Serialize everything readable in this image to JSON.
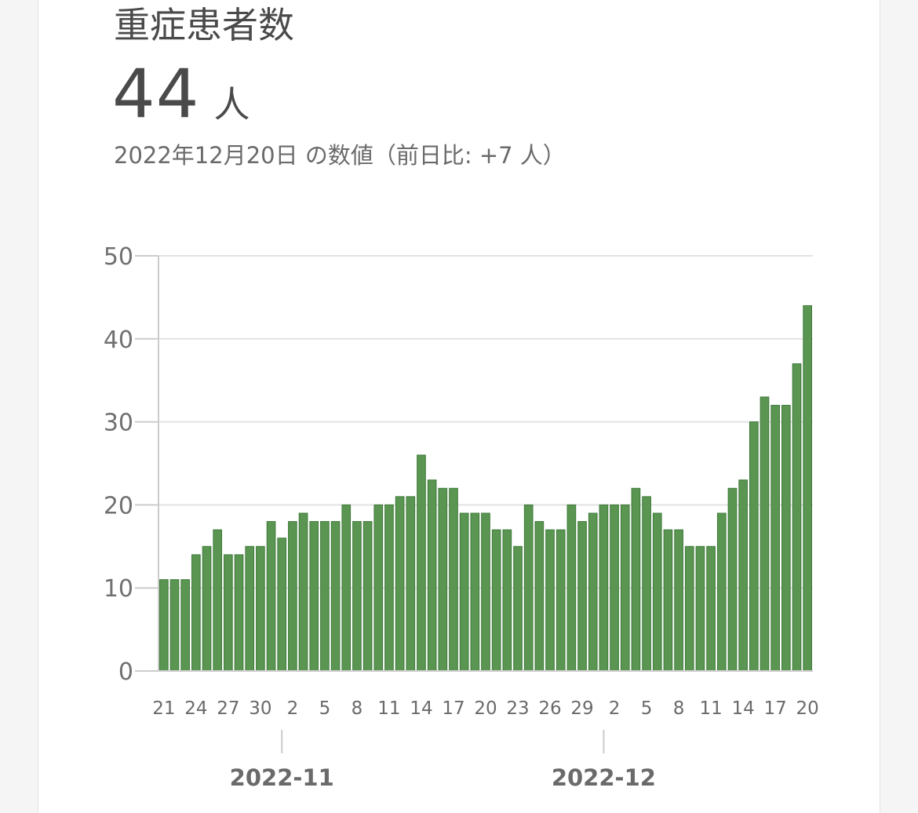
{
  "header": {
    "title": "重症患者数",
    "value": "44",
    "unit": "人",
    "subtitle": "2022年12月20日 の数値（前日比: +7 人）"
  },
  "colors": {
    "bar": "#5a9552",
    "bar_edge": "#3f7a3a",
    "grid": "#e3e3e3",
    "axis": "#cccccc"
  },
  "chart_data": {
    "type": "bar",
    "ylim": [
      0,
      50
    ],
    "yticks": [
      0,
      10,
      20,
      30,
      40,
      50
    ],
    "grid": true,
    "categories": [
      "2022-10-21",
      "2022-10-22",
      "2022-10-23",
      "2022-10-24",
      "2022-10-25",
      "2022-10-26",
      "2022-10-27",
      "2022-10-28",
      "2022-10-29",
      "2022-10-30",
      "2022-10-31",
      "2022-11-01",
      "2022-11-02",
      "2022-11-03",
      "2022-11-04",
      "2022-11-05",
      "2022-11-06",
      "2022-11-07",
      "2022-11-08",
      "2022-11-09",
      "2022-11-10",
      "2022-11-11",
      "2022-11-12",
      "2022-11-13",
      "2022-11-14",
      "2022-11-15",
      "2022-11-16",
      "2022-11-17",
      "2022-11-18",
      "2022-11-19",
      "2022-11-20",
      "2022-11-21",
      "2022-11-22",
      "2022-11-23",
      "2022-11-24",
      "2022-11-25",
      "2022-11-26",
      "2022-11-27",
      "2022-11-28",
      "2022-11-29",
      "2022-11-30",
      "2022-12-01",
      "2022-12-02",
      "2022-12-03",
      "2022-12-04",
      "2022-12-05",
      "2022-12-06",
      "2022-12-07",
      "2022-12-08",
      "2022-12-09",
      "2022-12-10",
      "2022-12-11",
      "2022-12-12",
      "2022-12-13",
      "2022-12-14",
      "2022-12-15",
      "2022-12-16",
      "2022-12-17",
      "2022-12-18",
      "2022-12-19",
      "2022-12-20"
    ],
    "values": [
      11,
      11,
      11,
      14,
      15,
      17,
      14,
      14,
      15,
      15,
      18,
      16,
      18,
      19,
      18,
      18,
      18,
      20,
      18,
      18,
      20,
      20,
      21,
      21,
      26,
      23,
      22,
      22,
      19,
      19,
      19,
      17,
      17,
      15,
      20,
      18,
      17,
      17,
      20,
      18,
      19,
      20,
      20,
      20,
      22,
      21,
      19,
      17,
      17,
      15,
      15,
      15,
      19,
      22,
      23,
      30,
      33,
      32,
      32,
      37,
      44
    ],
    "xtick_labels": [
      {
        "index": 0,
        "label": "21"
      },
      {
        "index": 3,
        "label": "24"
      },
      {
        "index": 6,
        "label": "27"
      },
      {
        "index": 9,
        "label": "30"
      },
      {
        "index": 12,
        "label": "2"
      },
      {
        "index": 15,
        "label": "5"
      },
      {
        "index": 18,
        "label": "8"
      },
      {
        "index": 21,
        "label": "11"
      },
      {
        "index": 24,
        "label": "14"
      },
      {
        "index": 27,
        "label": "17"
      },
      {
        "index": 30,
        "label": "20"
      },
      {
        "index": 33,
        "label": "23"
      },
      {
        "index": 36,
        "label": "26"
      },
      {
        "index": 39,
        "label": "29"
      },
      {
        "index": 42,
        "label": "2"
      },
      {
        "index": 45,
        "label": "5"
      },
      {
        "index": 48,
        "label": "8"
      },
      {
        "index": 51,
        "label": "11"
      },
      {
        "index": 54,
        "label": "14"
      },
      {
        "index": 57,
        "label": "17"
      },
      {
        "index": 60,
        "label": "20"
      }
    ],
    "month_labels": [
      {
        "index": 11,
        "label": "2022-11"
      },
      {
        "index": 41,
        "label": "2022-12"
      }
    ]
  }
}
